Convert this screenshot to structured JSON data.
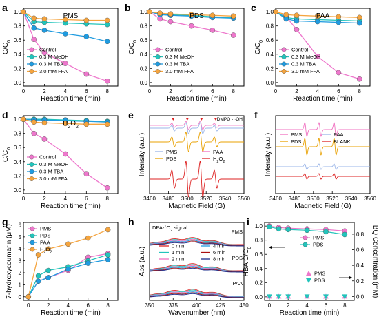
{
  "colors": {
    "pink": "#ee77cc",
    "teal": "#22c4bb",
    "blue": "#1f9be0",
    "orange": "#f5a43e",
    "red": "#dd2222",
    "gold": "#e8a000",
    "lightblue": "#9ab5e8",
    "pinkline": "#f070c0",
    "darkred": "#aa1010",
    "navy": "#1a2d8c"
  },
  "chart_data": [
    {
      "id": "a",
      "panel_label": "a",
      "type": "line",
      "title": "PMS",
      "xlabel": "Reaction time (min)",
      "ylabel": "C/C0",
      "ylabel_main": "C/C",
      "ylabel_sub": "0",
      "xlim": [
        0,
        9
      ],
      "ylim": [
        -0.05,
        1.05
      ],
      "xticks": [
        0,
        2,
        4,
        6,
        8
      ],
      "yticks": [
        0.0,
        0.2,
        0.4,
        0.6,
        0.8,
        1.0
      ],
      "ytick_labels": [
        "0.0",
        "0.2",
        "0.4",
        "0.6",
        "0.8",
        "1.0"
      ],
      "x": [
        0,
        1,
        2,
        4,
        6,
        8
      ],
      "series": [
        {
          "name": "Control",
          "color": "pink",
          "values": [
            1.0,
            0.61,
            0.42,
            0.27,
            0.12,
            0.02
          ]
        },
        {
          "name": "0.3 M MeOH",
          "color": "teal",
          "values": [
            1.0,
            0.86,
            0.85,
            0.84,
            0.83,
            0.82
          ]
        },
        {
          "name": "0.3 M TBA",
          "color": "blue",
          "values": [
            1.0,
            0.77,
            0.74,
            0.69,
            0.65,
            0.58
          ]
        },
        {
          "name": "3.0 mM FFA",
          "color": "orange",
          "values": [
            1.0,
            0.91,
            0.9,
            0.89,
            0.88,
            0.88
          ]
        }
      ],
      "legend_position": "bottom-left",
      "legend_names": [
        "Control",
        "0.3 M MeOH",
        "0.3 M TBA",
        "3.0 mM FFA"
      ]
    },
    {
      "id": "b",
      "panel_label": "b",
      "type": "line",
      "title": "PDS",
      "xlabel": "Reaction time (min)",
      "ylabel": "C/C0",
      "ylabel_main": "C/C",
      "ylabel_sub": "0",
      "xlim": [
        0,
        9
      ],
      "ylim": [
        -0.05,
        1.05
      ],
      "xticks": [
        0,
        2,
        4,
        6,
        8
      ],
      "yticks": [
        0.0,
        0.2,
        0.4,
        0.6,
        0.8,
        1.0
      ],
      "ytick_labels": [
        "0.0",
        "0.2",
        "0.4",
        "0.6",
        "0.8",
        "1.0"
      ],
      "x": [
        0,
        1,
        2,
        4,
        6,
        8
      ],
      "series": [
        {
          "name": "Control",
          "color": "pink",
          "values": [
            1.0,
            0.9,
            0.86,
            0.8,
            0.74,
            0.67
          ]
        },
        {
          "name": "0.3 M MeOH",
          "color": "teal",
          "values": [
            1.0,
            0.97,
            0.96,
            0.95,
            0.93,
            0.92
          ]
        },
        {
          "name": "0.3 M TBA",
          "color": "blue",
          "values": [
            1.0,
            0.96,
            0.95,
            0.94,
            0.92,
            0.91
          ]
        },
        {
          "name": "3.0 mM FFA",
          "color": "orange",
          "values": [
            1.0,
            0.98,
            0.97,
            0.96,
            0.95,
            0.94
          ]
        }
      ],
      "legend_position": "bottom-left",
      "legend_names": [
        "Control",
        "0.3 M MeOH",
        "0.3 M TBA",
        "3.0 mM FFA"
      ]
    },
    {
      "id": "c",
      "panel_label": "c",
      "type": "line",
      "title": "PAA",
      "xlabel": "Reaction time (min)",
      "ylabel": "C/C0",
      "ylabel_main": "C/C",
      "ylabel_sub": "0",
      "xlim": [
        0,
        9
      ],
      "ylim": [
        -0.05,
        1.05
      ],
      "xticks": [
        0,
        2,
        4,
        6,
        8
      ],
      "yticks": [
        0.0,
        0.2,
        0.4,
        0.6,
        0.8,
        1.0
      ],
      "ytick_labels": [
        "0.0",
        "0.2",
        "0.4",
        "0.6",
        "0.8",
        "1.0"
      ],
      "x": [
        0,
        1,
        2,
        4,
        6,
        8
      ],
      "series": [
        {
          "name": "Control",
          "color": "pink",
          "values": [
            1.0,
            0.93,
            0.75,
            0.37,
            0.14,
            0.05
          ]
        },
        {
          "name": "0.3 M MeOH",
          "color": "teal",
          "values": [
            1.0,
            0.92,
            0.9,
            0.89,
            0.88,
            0.87
          ]
        },
        {
          "name": "0.3 M TBA",
          "color": "blue",
          "values": [
            1.0,
            0.9,
            0.87,
            0.86,
            0.85,
            0.84
          ]
        },
        {
          "name": "3.0 mM FFA",
          "color": "orange",
          "values": [
            1.0,
            0.96,
            0.95,
            0.94,
            0.93,
            0.92
          ]
        }
      ],
      "legend_position": "bottom-left",
      "legend_names": [
        "Control",
        "0.3 M MeOH",
        "0.3 M TBA",
        "3.0 mM FFA"
      ]
    },
    {
      "id": "d",
      "panel_label": "d",
      "type": "line",
      "title": "H2O2",
      "title_main": "H",
      "title_sub1": "2",
      "title_mid": "O",
      "title_sub2": "2",
      "xlabel": "Reaction time (min)",
      "ylabel": "C/C0",
      "ylabel_main": "C/C",
      "ylabel_sub": "0",
      "xlim": [
        0,
        9
      ],
      "ylim": [
        -0.05,
        1.05
      ],
      "xticks": [
        0,
        2,
        4,
        6,
        8
      ],
      "yticks": [
        0.0,
        0.2,
        0.4,
        0.6,
        0.8,
        1.0
      ],
      "ytick_labels": [
        "0.0",
        "0.2",
        "0.4",
        "0.6",
        "0.8",
        "1.0"
      ],
      "x": [
        0,
        1,
        2,
        4,
        6,
        8
      ],
      "series": [
        {
          "name": "Control",
          "color": "pink",
          "values": [
            1.0,
            0.8,
            0.72,
            0.51,
            0.23,
            0.03
          ]
        },
        {
          "name": "0.3 M MeOH",
          "color": "teal",
          "values": [
            1.0,
            1.0,
            1.0,
            0.99,
            0.98,
            0.97
          ]
        },
        {
          "name": "0.3 M TBA",
          "color": "blue",
          "values": [
            1.0,
            0.99,
            0.99,
            0.98,
            0.97,
            0.96
          ]
        },
        {
          "name": "3.0 mM FFA",
          "color": "orange",
          "values": [
            1.0,
            0.96,
            0.95,
            0.94,
            0.93,
            0.93
          ]
        }
      ],
      "legend_position": "bottom-left",
      "legend_names": [
        "Control",
        "0.3 M MeOH",
        "0.3 M TBA",
        "3.0 mM FFA"
      ]
    },
    {
      "id": "e",
      "panel_label": "e",
      "type": "line",
      "subtype": "epr_spectra",
      "xlabel": "Magnetic Field (G)",
      "ylabel": "Intensity (a.u.)",
      "xlim": [
        3460,
        3560
      ],
      "xticks": [
        3460,
        3480,
        3500,
        3520,
        3540,
        3560
      ],
      "marker_annotation": "DMPO - ·OH",
      "marker_positions": [
        3485,
        3500,
        3515,
        3530
      ],
      "series": [
        {
          "name": "PMS",
          "color": "lightblue",
          "amplitude": 0.15,
          "pattern": "quartet"
        },
        {
          "name": "PDS",
          "color": "gold",
          "amplitude": 0.4,
          "pattern": "quartet"
        },
        {
          "name": "PAA",
          "color": "pinkline",
          "amplitude": 0.2,
          "pattern": "quartet"
        },
        {
          "name": "H2O2",
          "color": "red",
          "amplitude": 1.0,
          "pattern": "quartet"
        }
      ],
      "legend_position": "middle",
      "legend_col1": [
        "PMS",
        "PDS"
      ],
      "legend_col2": [
        "PAA",
        "H"
      ],
      "legend_h2o2_main": "H",
      "legend_h2o2_s1": "2",
      "legend_h2o2_mid": "O",
      "legend_h2o2_s2": "2"
    },
    {
      "id": "f",
      "panel_label": "f",
      "type": "line",
      "subtype": "epr_spectra",
      "xlabel": "Magnetic Field (G)",
      "ylabel": "Intensity (a.u.)",
      "xlim": [
        3460,
        3560
      ],
      "xticks": [
        3460,
        3480,
        3500,
        3520,
        3540,
        3560
      ],
      "series": [
        {
          "name": "PMS",
          "color": "pinkline",
          "amplitude": 0.8,
          "pattern": "triplet"
        },
        {
          "name": "PDS",
          "color": "gold",
          "amplitude": 1.0,
          "pattern": "triplet"
        },
        {
          "name": "PAA",
          "color": "lightblue",
          "amplitude": 0.3,
          "pattern": "triplet"
        },
        {
          "name": "BLANK",
          "color": "red",
          "amplitude": 0.3,
          "pattern": "triplet"
        }
      ],
      "legend_position": "top",
      "legend_col1": [
        "PMS",
        "PDS"
      ],
      "legend_col2": [
        "PAA",
        "BLANK"
      ]
    },
    {
      "id": "g",
      "panel_label": "g",
      "type": "line",
      "xlabel": "Reaction time (min)",
      "ylabel": "7-hydroxycoumarin (μM)",
      "xlim": [
        -0.5,
        9
      ],
      "ylim": [
        -0.3,
        6.2
      ],
      "xticks": [
        0,
        2,
        4,
        6,
        8
      ],
      "yticks": [
        0,
        1,
        2,
        3,
        4,
        5,
        6
      ],
      "ytick_labels": [
        "0",
        "1",
        "2",
        "3",
        "4",
        "5",
        "6"
      ],
      "x": [
        0,
        1,
        2,
        4,
        6,
        8
      ],
      "series": [
        {
          "name": "PMS",
          "color": "pink",
          "values": [
            0.0,
            1.3,
            1.6,
            2.2,
            3.3,
            3.6
          ]
        },
        {
          "name": "PDS",
          "color": "teal",
          "values": [
            0.0,
            1.75,
            2.2,
            2.5,
            3.0,
            3.5
          ]
        },
        {
          "name": "PAA",
          "color": "blue",
          "values": [
            0.0,
            1.3,
            1.6,
            2.3,
            2.8,
            3.1
          ]
        },
        {
          "name": "H2O2",
          "color": "orange",
          "values": [
            0.0,
            3.5,
            4.0,
            4.4,
            4.9,
            5.6
          ]
        }
      ],
      "legend_position": "top-left",
      "legend_names": [
        "PMS",
        "PDS",
        "PAA",
        "H"
      ],
      "legend_h2o2_main": "H",
      "legend_h2o2_s1": "2",
      "legend_h2o2_mid": "O",
      "legend_h2o2_s2": "2"
    },
    {
      "id": "h",
      "panel_label": "h",
      "type": "line",
      "subtype": "uv_vis",
      "title": "DPA-¹O₂ signal",
      "title_main": "DPA-",
      "title_sup": "1",
      "title_o": "O",
      "title_sub": "2",
      "title_end": " signal",
      "xlabel": "Wavenumber (nm)",
      "ylabel": "Abs (a.u.)",
      "xlim": [
        350,
        450
      ],
      "xticks": [
        350,
        375,
        400,
        425,
        450
      ],
      "groups": [
        "PMS",
        "PDS",
        "PAA"
      ],
      "series": [
        {
          "name": "0 min",
          "color": "red"
        },
        {
          "name": "1 min",
          "color": "teal"
        },
        {
          "name": "2 min",
          "color": "pinkline"
        },
        {
          "name": "4 min",
          "color": "blue"
        },
        {
          "name": "6 min",
          "color": "darkred"
        },
        {
          "name": "8 min",
          "color": "navy"
        }
      ],
      "legend_position": "middle"
    },
    {
      "id": "i",
      "panel_label": "i",
      "type": "scatter",
      "xlabel": "Reaction time (min)",
      "ylabel": "HBA C/C0",
      "ylabel_main": "HBA C/C",
      "ylabel_sub": "0",
      "ylabel_right": "BQ Concentration (mM)",
      "xlim": [
        -0.5,
        9
      ],
      "ylim": [
        -0.05,
        1.05
      ],
      "xticks": [
        0,
        2,
        4,
        6,
        8
      ],
      "yticks": [
        0.0,
        0.2,
        0.4,
        0.6,
        0.8,
        1.0
      ],
      "ytick_labels": [
        "0.0",
        "0.2",
        "0.4",
        "0.6",
        "0.8",
        "1.0"
      ],
      "yticks_right": [
        0.0,
        0.2,
        0.4,
        0.6,
        0.8
      ],
      "ylim_right": [
        -0.05,
        0.95
      ],
      "ytick_labels_right": [
        "0.0",
        "0.2",
        "0.4",
        "0.6",
        "0.8"
      ],
      "x": [
        0,
        1,
        2,
        4,
        6,
        8
      ],
      "series": [
        {
          "name": "PMS",
          "axis": "left",
          "color": "pink",
          "marker": "circle",
          "values": [
            1.0,
            0.98,
            0.97,
            0.96,
            0.95,
            0.93
          ]
        },
        {
          "name": "PDS",
          "axis": "left",
          "color": "teal",
          "marker": "circle",
          "values": [
            0.99,
            0.96,
            0.95,
            0.94,
            0.92,
            0.88
          ]
        },
        {
          "name": "PMS",
          "axis": "right",
          "color": "pink",
          "marker": "triangle-up",
          "values": [
            0.0,
            0.0,
            0.0,
            0.0,
            0.0,
            0.0
          ]
        },
        {
          "name": "PDS",
          "axis": "right",
          "color": "teal",
          "marker": "triangle-down",
          "values": [
            0.0,
            0.0,
            0.0,
            0.0,
            0.0,
            0.0
          ]
        }
      ]
    }
  ]
}
